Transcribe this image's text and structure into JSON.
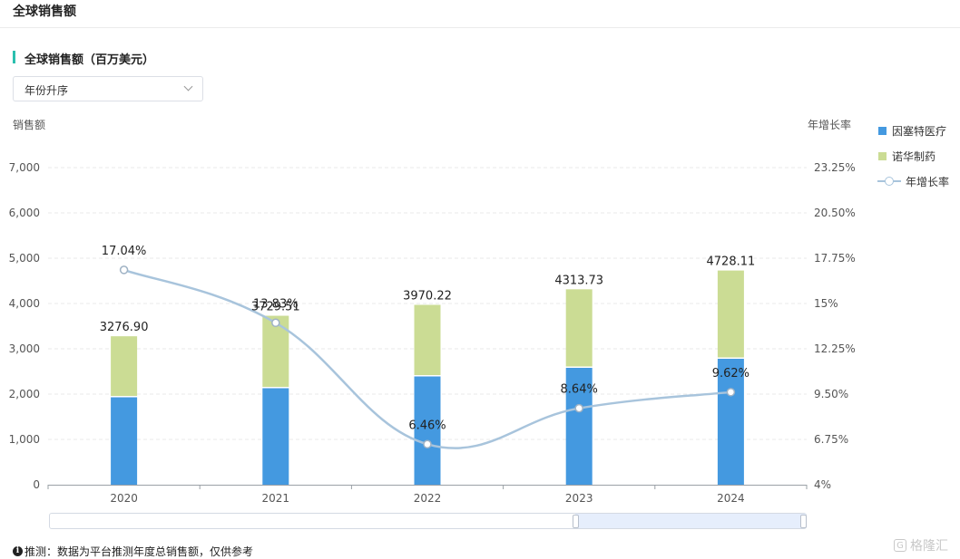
{
  "header": {
    "title": "全球销售额"
  },
  "section": {
    "title": "全球销售额（百万美元）"
  },
  "sort_select": {
    "value": "年份升序"
  },
  "chart_data": {
    "type": "bar",
    "stacked": true,
    "categories": [
      "2020",
      "2021",
      "2022",
      "2023",
      "2024"
    ],
    "series": [
      {
        "name": "因塞特医疗",
        "type": "bar",
        "color": "#4499e0",
        "values": [
          1930,
          2130,
          2390,
          2580,
          2780
        ]
      },
      {
        "name": "诺华制药",
        "type": "bar",
        "color": "#cbdc94",
        "values": [
          1346.9,
          1599.51,
          1580.22,
          1733.73,
          1948.11
        ]
      },
      {
        "name": "年增长率",
        "type": "line",
        "axis": "right",
        "color": "#a8c4dc",
        "values": [
          17.04,
          13.83,
          6.46,
          8.64,
          9.62
        ]
      }
    ],
    "totals": [
      "3276.90",
      "3729.51",
      "3970.22",
      "4313.73",
      "4728.11"
    ],
    "growth_labels": [
      "17.04%",
      "13.83%",
      "6.46%",
      "8.64%",
      "9.62%"
    ],
    "ylabel": "销售额",
    "y2label": "年增长率",
    "ylim": [
      0,
      7000
    ],
    "y2lim": [
      4,
      23.25
    ],
    "y_ticks": [
      "0",
      "1,000",
      "2,000",
      "3,000",
      "4,000",
      "5,000",
      "6,000",
      "7,000"
    ],
    "y2_ticks": [
      "4%",
      "6.75%",
      "9.50%",
      "12.25%",
      "15%",
      "17.75%",
      "20.50%",
      "23.25%"
    ],
    "grid": true,
    "legend_position": "right"
  },
  "slider": {
    "range_start": 0.7,
    "range_end": 1.0
  },
  "footnote": {
    "text": "推测：数据为平台推测年度总销售额，仅供参考"
  },
  "watermark": {
    "text": "格隆汇"
  }
}
